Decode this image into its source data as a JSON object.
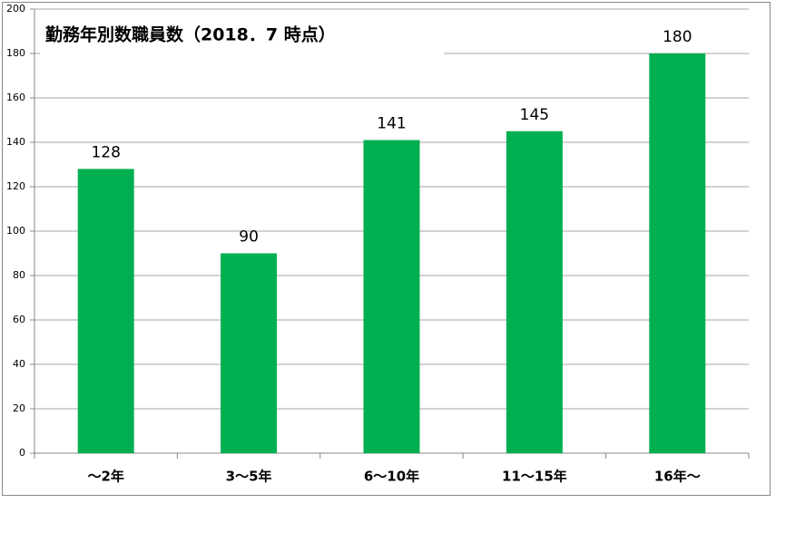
{
  "chart_data": {
    "type": "bar",
    "title": "勤務年別数職員数（2018．7 時点）",
    "categories": [
      "～2年",
      "3～5年",
      "6～10年",
      "11～15年",
      "16年～"
    ],
    "values": [
      128,
      90,
      141,
      145,
      180
    ],
    "color": "#00b050",
    "ylim": [
      0,
      200
    ],
    "yticks": [
      0,
      20,
      40,
      60,
      80,
      100,
      120,
      140,
      160,
      180,
      200
    ],
    "grid": true
  }
}
